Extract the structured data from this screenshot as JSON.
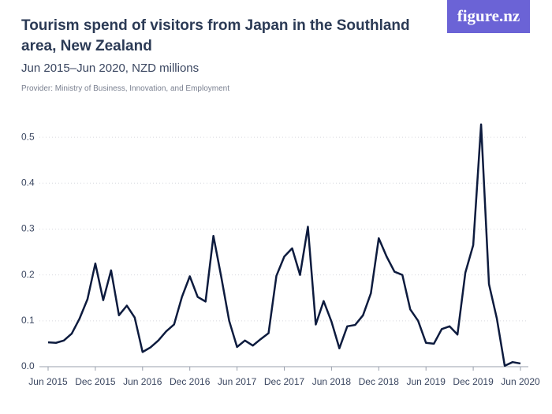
{
  "chart_data": {
    "type": "line",
    "title": "Tourism spend of visitors from Japan in the Southland area, New Zealand",
    "subtitle": "Jun 2015–Jun 2020, NZD millions",
    "provider": "Provider: Ministry of Business, Innovation, and Employment",
    "logo": "figure.nz",
    "categories": [
      "Jun 2015",
      null,
      null,
      null,
      null,
      null,
      "Dec 2015",
      null,
      null,
      null,
      null,
      null,
      "Jun 2016",
      null,
      null,
      null,
      null,
      null,
      "Dec 2016",
      null,
      null,
      null,
      null,
      null,
      "Jun 2017",
      null,
      null,
      null,
      null,
      null,
      "Dec 2017",
      null,
      null,
      null,
      null,
      null,
      "Jun 2018",
      null,
      null,
      null,
      null,
      null,
      "Dec 2018",
      null,
      null,
      null,
      null,
      null,
      "Jun 2019",
      null,
      null,
      null,
      null,
      null,
      "Dec 2019",
      null,
      null,
      null,
      null,
      null,
      "Jun 2020"
    ],
    "series": [
      {
        "name": "Tourism spend",
        "color": "#0d1b3e",
        "values": [
          0.053,
          0.052,
          0.057,
          0.072,
          0.105,
          0.147,
          0.225,
          0.145,
          0.21,
          0.112,
          0.133,
          0.107,
          0.032,
          0.042,
          0.057,
          0.077,
          0.092,
          0.152,
          0.197,
          0.152,
          0.142,
          0.285,
          0.195,
          0.1,
          0.043,
          0.057,
          0.046,
          0.06,
          0.073,
          0.198,
          0.24,
          0.258,
          0.2,
          0.305,
          0.092,
          0.143,
          0.098,
          0.04,
          0.088,
          0.091,
          0.112,
          0.16,
          0.28,
          0.24,
          0.207,
          0.2,
          0.125,
          0.1,
          0.052,
          0.05,
          0.082,
          0.088,
          0.07,
          0.205,
          0.265,
          0.528,
          0.18,
          0.105,
          0.002,
          0.01,
          0.007
        ]
      }
    ],
    "ylim": [
      0,
      0.55
    ],
    "yticks": [
      {
        "value": 0,
        "label": "0.0"
      },
      0.1,
      0.2,
      0.3,
      0.4,
      0.5
    ],
    "grid": true
  }
}
